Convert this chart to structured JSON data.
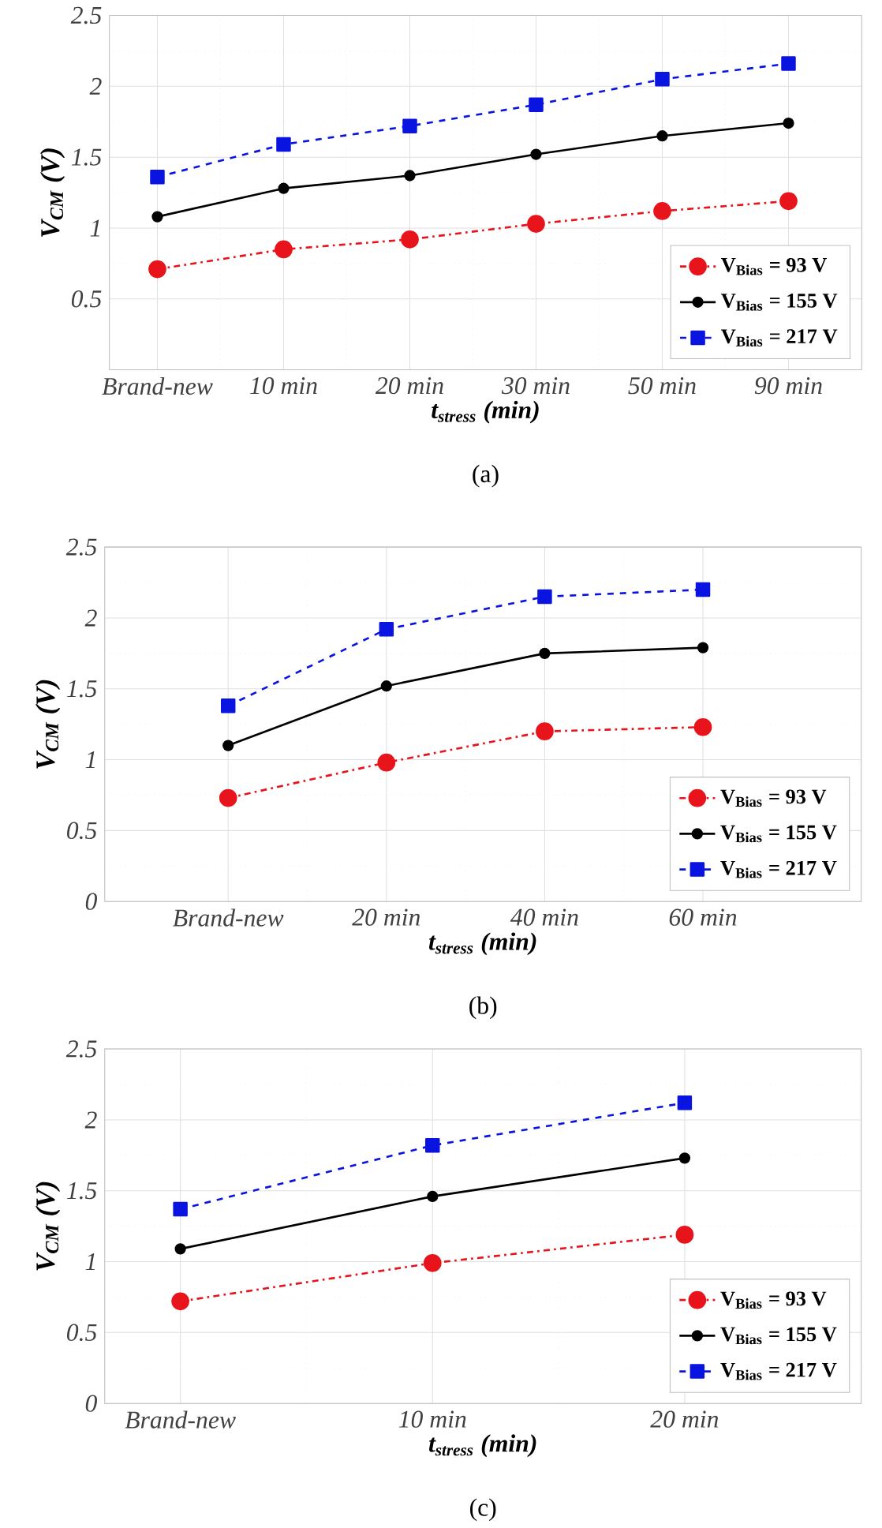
{
  "chart_data": [
    {
      "type": "line",
      "xlabel": "*t$_{stress}$ (min)*",
      "ylabel": "*V$_{CM}$ (V)*",
      "annotations": [
        "(a)"
      ],
      "categories": [
        "Brand-new",
        "10 min",
        "20 min",
        "30 min",
        "50 min",
        "90 min"
      ],
      "ylim": [
        0,
        2.5
      ],
      "yticks": [
        0.5,
        1,
        1.5,
        2,
        2.5
      ],
      "grid": true,
      "legend": "bottom right",
      "series": [
        {
          "name": "V$_{Bias}$ = 93 V",
          "color": "#e8141c",
          "marker": "circle",
          "line_style": "dashdot",
          "values": [
            0.71,
            0.85,
            0.92,
            1.03,
            1.12,
            1.19
          ]
        },
        {
          "name": "V$_{Bias}$ = 155 V",
          "color": "#000000",
          "marker": "circle",
          "line_style": "solid",
          "values": [
            1.08,
            1.28,
            1.37,
            1.52,
            1.65,
            1.74
          ]
        },
        {
          "name": "V$_{Bias}$ = 217 V",
          "color": "#0a14e0",
          "marker": "square",
          "line_style": "dashed",
          "values": [
            1.36,
            1.59,
            1.72,
            1.87,
            2.05,
            2.16
          ]
        }
      ]
    },
    {
      "type": "line",
      "xlabel": "*t$_{stress}$ (min)*",
      "ylabel": "*V$_{CM}$ (V)*",
      "annotations": [
        "(b)"
      ],
      "categories": [
        "Brand-new",
        "20 min",
        "40 min",
        "60 min"
      ],
      "ylim": [
        0,
        2.5
      ],
      "yticks": [
        0,
        0.5,
        1,
        1.5,
        2,
        2.5
      ],
      "grid": true,
      "legend": "bottom right",
      "series": [
        {
          "name": "V$_{Bias}$ = 93 V",
          "color": "#e8141c",
          "marker": "circle",
          "line_style": "dashdot",
          "values": [
            0.73,
            0.98,
            1.2,
            1.23
          ]
        },
        {
          "name": "V$_{Bias}$ = 155 V",
          "color": "#000000",
          "marker": "circle",
          "line_style": "solid",
          "values": [
            1.1,
            1.52,
            1.75,
            1.79
          ]
        },
        {
          "name": "V$_{Bias}$ = 217 V",
          "color": "#0a14e0",
          "marker": "square",
          "line_style": "dashed",
          "values": [
            1.38,
            1.92,
            2.15,
            2.2
          ]
        }
      ]
    },
    {
      "type": "line",
      "xlabel": "*t$_{stress}$ (min)*",
      "ylabel": "*V$_{CM}$ (V)*",
      "annotations": [
        "(c)"
      ],
      "categories": [
        "Brand-new",
        "10 min",
        "20 min"
      ],
      "ylim": [
        0,
        2.5
      ],
      "yticks": [
        0,
        0.5,
        1,
        1.5,
        2,
        2.5
      ],
      "grid": true,
      "legend": "bottom right",
      "series": [
        {
          "name": "V$_{Bias}$ = 93 V",
          "color": "#e8141c",
          "marker": "circle",
          "line_style": "dashdot",
          "values": [
            0.72,
            0.99,
            1.19
          ]
        },
        {
          "name": "V$_{Bias}$ = 155 V",
          "color": "#000000",
          "marker": "circle",
          "line_style": "solid",
          "values": [
            1.09,
            1.46,
            1.73
          ]
        },
        {
          "name": "V$_{Bias}$ = 217 V",
          "color": "#0a14e0",
          "marker": "square",
          "line_style": "dashed",
          "values": [
            1.37,
            1.82,
            2.12
          ]
        }
      ]
    }
  ]
}
